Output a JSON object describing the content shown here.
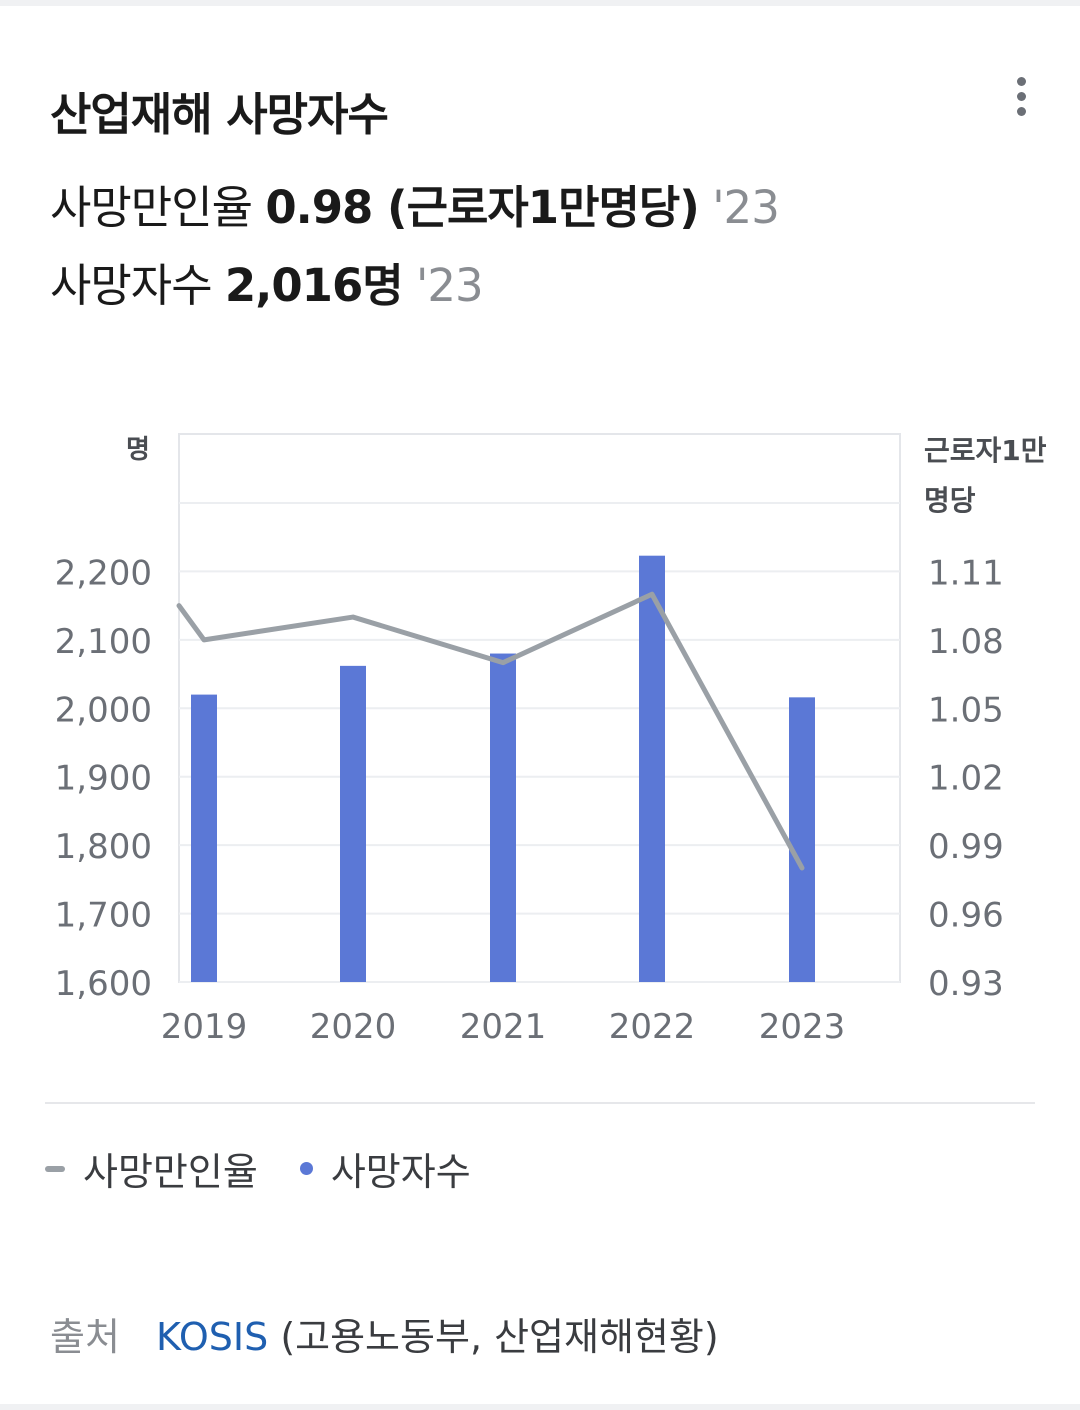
{
  "card": {
    "title": "산업재해 사망자수",
    "more_icon": "more-vertical-icon"
  },
  "stats": [
    {
      "label": "사망만인율",
      "value": "0.98 (근로자1만명당)",
      "year": "'23"
    },
    {
      "label": "사망자수",
      "value": "2,016명",
      "year": "'23"
    }
  ],
  "legend": [
    {
      "label": "사망만인율",
      "marker": "line",
      "color": "#9aa0a6"
    },
    {
      "label": "사망자수",
      "marker": "dot",
      "color": "#5b78d6"
    }
  ],
  "source": {
    "label": "출처",
    "link": "KOSIS",
    "detail": "(고용노동부, 산업재해현황)"
  },
  "chart_data": {
    "type": "bar",
    "categories": [
      "2019",
      "2020",
      "2021",
      "2022",
      "2023"
    ],
    "ylabel": "명",
    "y2label": [
      "근로자1만",
      "명당"
    ],
    "ylim": [
      1600,
      2300
    ],
    "y_ticks": [
      "1,600",
      "1,700",
      "1,800",
      "1,900",
      "2,000",
      "2,100",
      "2,200"
    ],
    "y2lim": [
      0.93,
      1.14
    ],
    "y2_ticks": [
      "0.93",
      "0.96",
      "0.99",
      "1.02",
      "1.05",
      "1.08",
      "1.11"
    ],
    "grid": true,
    "series": [
      {
        "name": "사망자수",
        "type": "bar",
        "axis": "left",
        "color": "#5b78d6",
        "values": [
          2020,
          2062,
          2080,
          2223,
          2016
        ]
      },
      {
        "name": "사망만인율",
        "type": "line",
        "axis": "right",
        "color": "#9aa0a6",
        "values": [
          1.08,
          1.09,
          1.07,
          1.1,
          0.98
        ],
        "leading_value": 1.095
      }
    ]
  }
}
